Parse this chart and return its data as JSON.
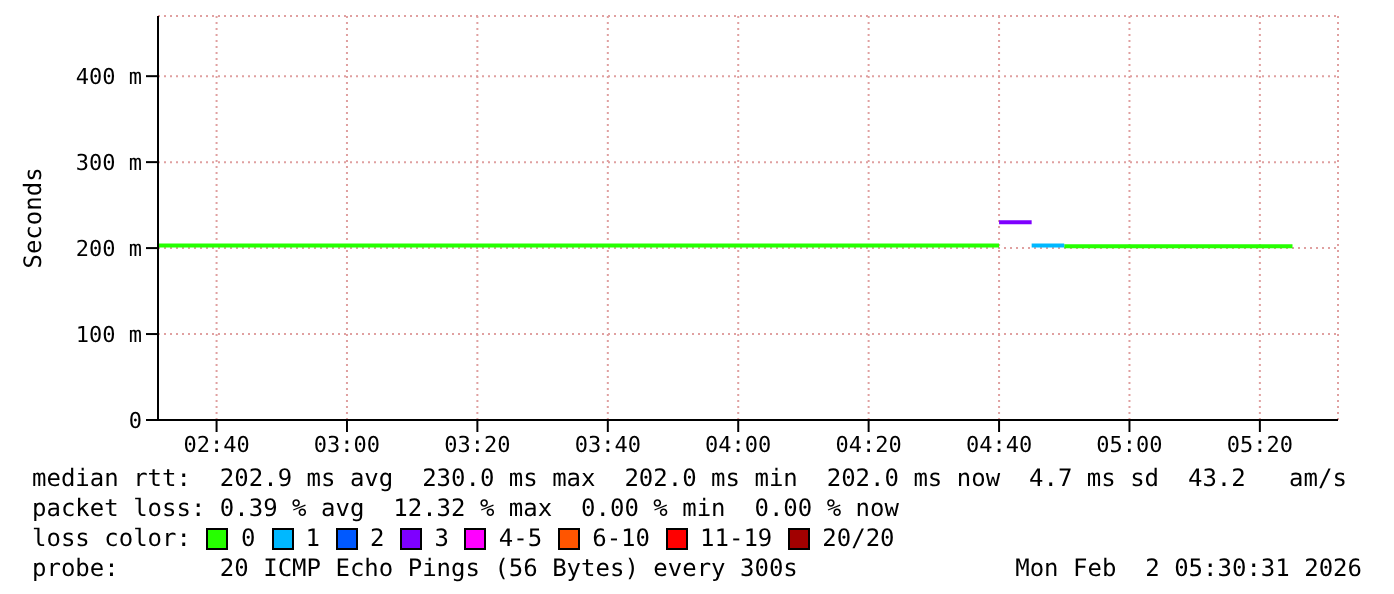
{
  "chart_data": {
    "type": "step",
    "ylabel": "Seconds",
    "xlim": [
      2.517,
      5.533
    ],
    "xticks": [
      {
        "value": 2.6667,
        "label": "02:40"
      },
      {
        "value": 3,
        "label": "03:00"
      },
      {
        "value": 3.3333,
        "label": "03:20"
      },
      {
        "value": 3.6667,
        "label": "03:40"
      },
      {
        "value": 4,
        "label": "04:00"
      },
      {
        "value": 4.3333,
        "label": "04:20"
      },
      {
        "value": 4.6667,
        "label": "04:40"
      },
      {
        "value": 5,
        "label": "05:00"
      },
      {
        "value": 5.3333,
        "label": "05:20"
      }
    ],
    "ylim": [
      0,
      470
    ],
    "yticks": [
      {
        "value": 0,
        "label": "0"
      },
      {
        "value": 100,
        "label": "100 m"
      },
      {
        "value": 200,
        "label": "200 m"
      },
      {
        "value": 300,
        "label": "300 m"
      },
      {
        "value": 400,
        "label": "400 m"
      }
    ],
    "grid": true,
    "legend": "bottom",
    "legend_title": "loss color:",
    "series": [
      {
        "name": "0",
        "color": "#26ff00",
        "x": [
          2.517,
          4.6667,
          null,
          4.8333,
          5.4167
        ],
        "values": [
          203,
          203,
          null,
          202,
          202
        ]
      },
      {
        "name": "1",
        "color": "#00b8ff",
        "x": [
          4.75,
          4.8333
        ],
        "values": [
          203,
          203
        ]
      },
      {
        "name": "2",
        "color": "#0059ff"
      },
      {
        "name": "3",
        "color": "#7e00ff",
        "x": [
          4.6667,
          4.75
        ],
        "values": [
          230,
          230
        ]
      },
      {
        "name": "4-5",
        "color": "#ff00ff"
      },
      {
        "name": "6-10",
        "color": "#ff5500"
      },
      {
        "name": "11-19",
        "color": "#ff0000"
      },
      {
        "name": "20/20",
        "color": "#a10000"
      }
    ],
    "annotations": [
      "median rtt:  202.9 ms avg  230.0 ms max  202.0 ms min  202.0 ms now  4.7 ms sd  43.2   am/s",
      "packet loss: 0.39 % avg  12.32 % max  0.00 % min  0.00 % now",
      "probe:       20 ICMP Echo Pings (56 Bytes) every 300s",
      "Mon Feb  2 05:30:31 2026"
    ]
  }
}
